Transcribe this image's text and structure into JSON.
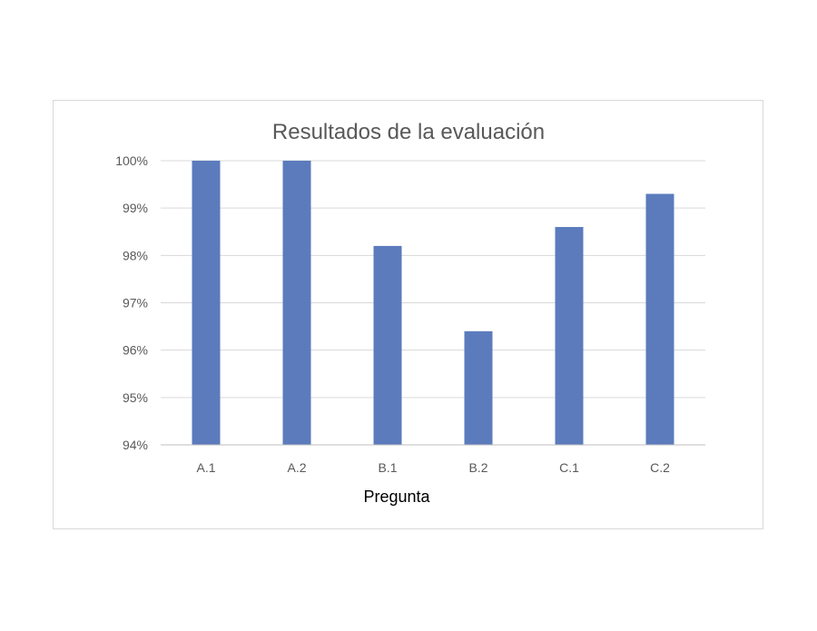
{
  "chart_data": {
    "type": "bar",
    "title": "Resultados de la evaluación",
    "xlabel": "Pregunta",
    "ylabel": "",
    "categories": [
      "A.1",
      "A.2",
      "B.1",
      "B.2",
      "C.1",
      "C.2"
    ],
    "values": [
      100,
      100,
      98.2,
      96.4,
      98.6,
      99.3
    ],
    "ylim": [
      94,
      100
    ],
    "yticks": [
      94,
      95,
      96,
      97,
      98,
      99,
      100
    ],
    "ytick_labels": [
      "94%",
      "95%",
      "96%",
      "97%",
      "98%",
      "99%",
      "100%"
    ],
    "grid": true,
    "legend": "none",
    "colors": {
      "bar": "#5b7bbd",
      "grid": "#d9d9d9",
      "axis": "#bfbfbf"
    }
  }
}
